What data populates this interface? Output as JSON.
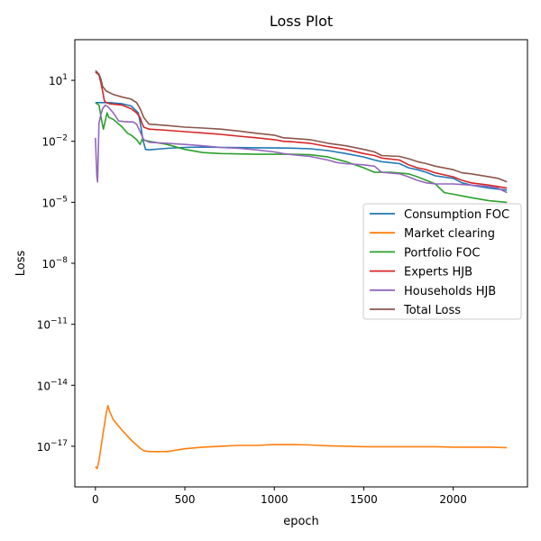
{
  "chart_data": {
    "type": "line",
    "title": "Loss Plot",
    "xlabel": "epoch",
    "ylabel": "Loss",
    "xlim": [
      -115,
      2415
    ],
    "ylim": [
      1e-19,
      1000.0
    ],
    "y_scale": "log",
    "x_ticks": [
      0,
      500,
      1000,
      1500,
      2000
    ],
    "x_tick_labels": [
      "0",
      "500",
      "1000",
      "1500",
      "2000"
    ],
    "y_ticks": [
      1e-17,
      1e-14,
      1e-11,
      1e-08,
      1e-05,
      0.01,
      10.0
    ],
    "y_tick_labels": [
      {
        "base": "10",
        "exp": "−17"
      },
      {
        "base": "10",
        "exp": "−14"
      },
      {
        "base": "10",
        "exp": "−11"
      },
      {
        "base": "10",
        "exp": "−8"
      },
      {
        "base": "10",
        "exp": "−5"
      },
      {
        "base": "10",
        "exp": "−2"
      },
      {
        "base": "10",
        "exp": "1"
      }
    ],
    "legend_position": "center-right",
    "series": [
      {
        "name": "Consumption FOC",
        "color": "#1f77b4",
        "points": [
          [
            0,
            0.8
          ],
          [
            80,
            0.8
          ],
          [
            150,
            0.7
          ],
          [
            200,
            0.55
          ],
          [
            240,
            0.25
          ],
          [
            255,
            0.05
          ],
          [
            265,
            0.012
          ],
          [
            280,
            0.004
          ],
          [
            300,
            0.0038
          ],
          [
            400,
            0.0045
          ],
          [
            500,
            0.005
          ],
          [
            600,
            0.0052
          ],
          [
            700,
            0.005
          ],
          [
            800,
            0.0049
          ],
          [
            900,
            0.0048
          ],
          [
            1000,
            0.0047
          ],
          [
            1100,
            0.0046
          ],
          [
            1200,
            0.0043
          ],
          [
            1300,
            0.0035
          ],
          [
            1400,
            0.0025
          ],
          [
            1500,
            0.0017
          ],
          [
            1560,
            0.0012
          ],
          [
            1600,
            0.001
          ],
          [
            1700,
            0.0008
          ],
          [
            1750,
            0.0005
          ],
          [
            1800,
            0.0004
          ],
          [
            1850,
            0.0003
          ],
          [
            1900,
            0.0002
          ],
          [
            2000,
            0.00015
          ],
          [
            2050,
            9e-05
          ],
          [
            2100,
            7e-05
          ],
          [
            2200,
            5e-05
          ],
          [
            2300,
            4e-05
          ]
        ]
      },
      {
        "name": "Market clearing",
        "color": "#ff7f0e",
        "points": [
          [
            0,
            1e-18
          ],
          [
            10,
            8e-19
          ],
          [
            20,
            2e-18
          ],
          [
            40,
            3e-17
          ],
          [
            60,
            4e-16
          ],
          [
            70,
            1e-15
          ],
          [
            80,
            5e-16
          ],
          [
            100,
            2e-16
          ],
          [
            150,
            6e-17
          ],
          [
            200,
            2e-17
          ],
          [
            250,
            8e-18
          ],
          [
            270,
            6e-18
          ],
          [
            300,
            5.5e-18
          ],
          [
            400,
            5.5e-18
          ],
          [
            500,
            7.5e-18
          ],
          [
            600,
            9e-18
          ],
          [
            700,
            1e-17
          ],
          [
            800,
            1.1e-17
          ],
          [
            900,
            1.1e-17
          ],
          [
            1000,
            1.2e-17
          ],
          [
            1100,
            1.2e-17
          ],
          [
            1200,
            1.15e-17
          ],
          [
            1300,
            1.05e-17
          ],
          [
            1400,
            1e-17
          ],
          [
            1500,
            9.5e-18
          ],
          [
            1600,
            9.5e-18
          ],
          [
            1700,
            9.5e-18
          ],
          [
            1800,
            9.5e-18
          ],
          [
            1900,
            9.5e-18
          ],
          [
            2000,
            9e-18
          ],
          [
            2100,
            9e-18
          ],
          [
            2200,
            9e-18
          ],
          [
            2300,
            8.5e-18
          ]
        ]
      },
      {
        "name": "Portfolio FOC",
        "color": "#2ca02c",
        "points": [
          [
            0,
            0.8
          ],
          [
            20,
            0.6
          ],
          [
            35,
            0.1
          ],
          [
            45,
            0.04
          ],
          [
            55,
            0.1
          ],
          [
            65,
            0.25
          ],
          [
            75,
            0.15
          ],
          [
            100,
            0.12
          ],
          [
            150,
            0.05
          ],
          [
            180,
            0.025
          ],
          [
            200,
            0.02
          ],
          [
            230,
            0.012
          ],
          [
            250,
            0.007
          ],
          [
            260,
            0.012
          ],
          [
            280,
            0.011
          ],
          [
            300,
            0.01
          ],
          [
            400,
            0.007
          ],
          [
            500,
            0.004
          ],
          [
            600,
            0.0028
          ],
          [
            700,
            0.0025
          ],
          [
            800,
            0.0024
          ],
          [
            900,
            0.0023
          ],
          [
            1000,
            0.0023
          ],
          [
            1050,
            0.0023
          ],
          [
            1100,
            0.0023
          ],
          [
            1200,
            0.0022
          ],
          [
            1300,
            0.0017
          ],
          [
            1400,
            0.001
          ],
          [
            1500,
            0.0005
          ],
          [
            1560,
            0.0003
          ],
          [
            1650,
            0.0003
          ],
          [
            1750,
            0.00025
          ],
          [
            1800,
            0.00018
          ],
          [
            1850,
            0.00012
          ],
          [
            1900,
            8e-05
          ],
          [
            1950,
            3e-05
          ],
          [
            2000,
            2.5e-05
          ],
          [
            2100,
            1.7e-05
          ],
          [
            2200,
            1.2e-05
          ],
          [
            2300,
            1e-05
          ]
        ]
      },
      {
        "name": "Experts HJB",
        "color": "#d62728",
        "points": [
          [
            0,
            25
          ],
          [
            10,
            22
          ],
          [
            20,
            18
          ],
          [
            30,
            8
          ],
          [
            40,
            3
          ],
          [
            50,
            1
          ],
          [
            60,
            0.8
          ],
          [
            80,
            0.7
          ],
          [
            150,
            0.6
          ],
          [
            200,
            0.4
          ],
          [
            230,
            0.25
          ],
          [
            250,
            0.15
          ],
          [
            260,
            0.08
          ],
          [
            270,
            0.05
          ],
          [
            300,
            0.04
          ],
          [
            400,
            0.035
          ],
          [
            500,
            0.03
          ],
          [
            600,
            0.026
          ],
          [
            700,
            0.022
          ],
          [
            800,
            0.018
          ],
          [
            900,
            0.015
          ],
          [
            1000,
            0.012
          ],
          [
            1050,
            0.01
          ],
          [
            1100,
            0.0095
          ],
          [
            1200,
            0.008
          ],
          [
            1300,
            0.0055
          ],
          [
            1400,
            0.004
          ],
          [
            1500,
            0.0025
          ],
          [
            1560,
            0.002
          ],
          [
            1600,
            0.0015
          ],
          [
            1700,
            0.0012
          ],
          [
            1750,
            0.0007
          ],
          [
            1800,
            0.0005
          ],
          [
            1850,
            0.0004
          ],
          [
            1900,
            0.00028
          ],
          [
            2000,
            0.00018
          ],
          [
            2050,
            0.00012
          ],
          [
            2100,
            9e-05
          ],
          [
            2200,
            7e-05
          ],
          [
            2300,
            5e-05
          ]
        ]
      },
      {
        "name": "Households HJB",
        "color": "#9467bd",
        "points": [
          [
            0,
            0.015
          ],
          [
            5,
            0.001
          ],
          [
            8,
            0.0002
          ],
          [
            12,
            0.0001
          ],
          [
            20,
            0.08
          ],
          [
            30,
            0.2
          ],
          [
            40,
            0.4
          ],
          [
            55,
            0.6
          ],
          [
            70,
            0.5
          ],
          [
            100,
            0.25
          ],
          [
            130,
            0.1
          ],
          [
            180,
            0.09
          ],
          [
            210,
            0.09
          ],
          [
            230,
            0.07
          ],
          [
            250,
            0.03
          ],
          [
            270,
            0.012
          ],
          [
            300,
            0.009
          ],
          [
            400,
            0.008
          ],
          [
            500,
            0.007
          ],
          [
            600,
            0.006
          ],
          [
            700,
            0.005
          ],
          [
            800,
            0.0045
          ],
          [
            900,
            0.0038
          ],
          [
            1000,
            0.003
          ],
          [
            1050,
            0.0025
          ],
          [
            1100,
            0.0022
          ],
          [
            1200,
            0.0018
          ],
          [
            1300,
            0.0012
          ],
          [
            1350,
            0.0009
          ],
          [
            1400,
            0.0008
          ],
          [
            1500,
            0.0007
          ],
          [
            1560,
            0.0006
          ],
          [
            1600,
            0.0003
          ],
          [
            1700,
            0.00025
          ],
          [
            1750,
            0.00018
          ],
          [
            1800,
            0.00012
          ],
          [
            1850,
            9e-05
          ],
          [
            1900,
            8e-05
          ],
          [
            2000,
            8e-05
          ],
          [
            2100,
            7e-05
          ],
          [
            2200,
            6e-05
          ],
          [
            2250,
            5e-05
          ],
          [
            2300,
            3e-05
          ]
        ]
      },
      {
        "name": "Total Loss",
        "color": "#8c564b",
        "points": [
          [
            0,
            30
          ],
          [
            10,
            25
          ],
          [
            20,
            20
          ],
          [
            30,
            12
          ],
          [
            40,
            5
          ],
          [
            60,
            3
          ],
          [
            100,
            2
          ],
          [
            150,
            1.5
          ],
          [
            200,
            1.2
          ],
          [
            230,
            0.8
          ],
          [
            250,
            0.4
          ],
          [
            270,
            0.15
          ],
          [
            300,
            0.07
          ],
          [
            400,
            0.06
          ],
          [
            500,
            0.05
          ],
          [
            600,
            0.045
          ],
          [
            700,
            0.04
          ],
          [
            800,
            0.032
          ],
          [
            900,
            0.025
          ],
          [
            1000,
            0.02
          ],
          [
            1050,
            0.015
          ],
          [
            1100,
            0.014
          ],
          [
            1200,
            0.012
          ],
          [
            1300,
            0.008
          ],
          [
            1400,
            0.006
          ],
          [
            1500,
            0.004
          ],
          [
            1560,
            0.003
          ],
          [
            1600,
            0.002
          ],
          [
            1700,
            0.0018
          ],
          [
            1750,
            0.0014
          ],
          [
            1800,
            0.001
          ],
          [
            1850,
            0.0008
          ],
          [
            1900,
            0.0006
          ],
          [
            2000,
            0.0004
          ],
          [
            2050,
            0.00028
          ],
          [
            2100,
            0.00025
          ],
          [
            2200,
            0.00018
          ],
          [
            2250,
            0.00015
          ],
          [
            2300,
            0.0001
          ]
        ]
      }
    ]
  }
}
